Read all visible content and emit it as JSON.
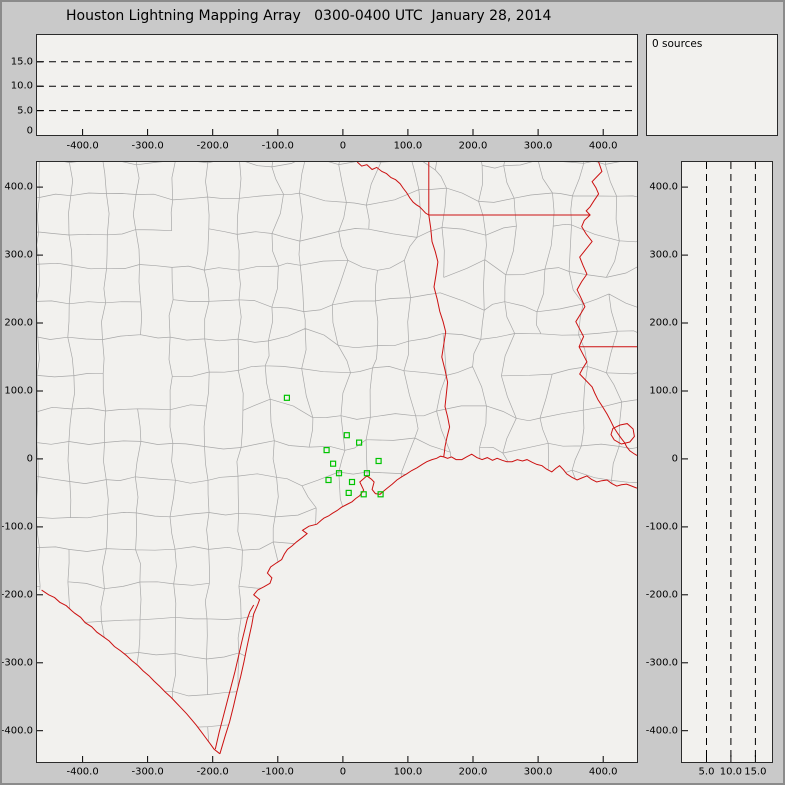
{
  "title": "Houston Lightning Mapping Array   0300-0400 UTC  January 28, 2014",
  "sources_label": "0 sources",
  "colors": {
    "window_bg": "#c9c9c9",
    "panel_bg": "#f2f1ee",
    "county_line": "#a8a8a8",
    "boundary_line": "#cc1111",
    "station_marker": "#00c400",
    "dashed_line": "#000000",
    "text": "#000000"
  },
  "axes": {
    "ew_km": {
      "ticks": [
        -400,
        -300,
        -200,
        -100,
        0,
        100,
        200,
        300,
        400
      ],
      "labels": [
        "-400.0",
        "-300.0",
        "-200.0",
        "-100.0",
        "0",
        "100.0",
        "200.0",
        "300.0",
        "400.0"
      ],
      "range": [
        -470,
        452
      ]
    },
    "ns_km": {
      "ticks": [
        400,
        300,
        200,
        100,
        0,
        -100,
        -200,
        -300,
        -400
      ],
      "labels": [
        "400.0",
        "300.0",
        "200.0",
        "100.0",
        "0",
        "-100.0",
        "-200.0",
        "-300.0",
        "-400.0"
      ],
      "range": [
        -446,
        437
      ]
    },
    "alt_km": {
      "dash_values": [
        5,
        10,
        15
      ],
      "left_ticks": [
        15,
        10,
        5,
        0
      ],
      "left_labels": [
        "15.0",
        "10.0",
        "5.0",
        "0"
      ],
      "bottom_ticks": [
        5,
        10,
        15
      ],
      "bottom_labels": [
        "5.0",
        "10.0",
        "15.0"
      ],
      "range_top_panel": [
        0,
        20.5
      ],
      "range_right_panel": [
        0,
        18.4
      ]
    }
  },
  "map": {
    "stations": [
      [
        -86,
        90
      ],
      [
        6,
        35
      ],
      [
        25,
        24
      ],
      [
        -25,
        13
      ],
      [
        -15,
        -7
      ],
      [
        -6,
        -21
      ],
      [
        -22,
        -31
      ],
      [
        14,
        -34
      ],
      [
        37,
        -21
      ],
      [
        55,
        -3
      ],
      [
        9,
        -50
      ],
      [
        32,
        -52
      ],
      [
        58,
        -52
      ]
    ],
    "coastline": [
      [
        -189,
        -434
      ],
      [
        -181,
        -408
      ],
      [
        -174,
        -387
      ],
      [
        -168,
        -364
      ],
      [
        -163,
        -343
      ],
      [
        -157,
        -320
      ],
      [
        -152,
        -299
      ],
      [
        -148,
        -280
      ],
      [
        -144,
        -262
      ],
      [
        -140,
        -244
      ],
      [
        -137,
        -228
      ],
      [
        -131,
        -215
      ],
      [
        -128,
        -207
      ],
      [
        -137,
        -200
      ],
      [
        -131,
        -193
      ],
      [
        -121,
        -188
      ],
      [
        -112,
        -183
      ],
      [
        -109,
        -175
      ],
      [
        -116,
        -168
      ],
      [
        -111,
        -159
      ],
      [
        -102,
        -153
      ],
      [
        -94,
        -148
      ],
      [
        -90,
        -140
      ],
      [
        -85,
        -133
      ],
      [
        -78,
        -128
      ],
      [
        -71,
        -122
      ],
      [
        -63,
        -116
      ],
      [
        -55,
        -110
      ],
      [
        -62,
        -105
      ],
      [
        -52,
        -99
      ],
      [
        -40,
        -96
      ],
      [
        -33,
        -90
      ],
      [
        -29,
        -87
      ],
      [
        -22,
        -84
      ],
      [
        -16,
        -80
      ],
      [
        -9,
        -76
      ],
      [
        -2,
        -71
      ],
      [
        6,
        -67
      ],
      [
        14,
        -63
      ],
      [
        20,
        -58
      ],
      [
        26,
        -54
      ],
      [
        32,
        -46
      ],
      [
        26,
        -34
      ],
      [
        37,
        -25
      ],
      [
        44,
        -30
      ],
      [
        48,
        -34
      ],
      [
        45,
        -45
      ],
      [
        50,
        -51
      ],
      [
        57,
        -52
      ],
      [
        63,
        -47
      ],
      [
        68,
        -43
      ],
      [
        76,
        -37
      ],
      [
        83,
        -31
      ],
      [
        91,
        -26
      ],
      [
        98,
        -22
      ],
      [
        106,
        -17
      ],
      [
        114,
        -13
      ],
      [
        122,
        -8
      ],
      [
        129,
        -4
      ],
      [
        137,
        -1
      ],
      [
        144,
        1
      ],
      [
        150,
        4
      ],
      [
        155,
        3
      ],
      [
        161,
        1
      ],
      [
        167,
        3
      ],
      [
        174,
        -1
      ],
      [
        183,
        -1
      ],
      [
        190,
        3
      ],
      [
        198,
        7
      ],
      [
        206,
        2
      ],
      [
        214,
        -1
      ],
      [
        222,
        2
      ],
      [
        230,
        -2
      ],
      [
        237,
        1
      ],
      [
        245,
        -2
      ],
      [
        252,
        -4
      ],
      [
        260,
        -4
      ],
      [
        268,
        -1
      ],
      [
        276,
        -3
      ],
      [
        283,
        -1
      ],
      [
        291,
        -5
      ],
      [
        298,
        -8
      ],
      [
        306,
        -10
      ],
      [
        313,
        -15
      ],
      [
        321,
        -19
      ],
      [
        327,
        -14
      ],
      [
        333,
        -10
      ],
      [
        339,
        -16
      ],
      [
        344,
        -22
      ],
      [
        352,
        -27
      ],
      [
        360,
        -31
      ],
      [
        367,
        -28
      ],
      [
        375,
        -25
      ],
      [
        382,
        -30
      ],
      [
        390,
        -34
      ],
      [
        398,
        -32
      ],
      [
        406,
        -31
      ],
      [
        413,
        -36
      ],
      [
        421,
        -40
      ],
      [
        428,
        -38
      ],
      [
        436,
        -37
      ],
      [
        444,
        -40
      ],
      [
        452,
        -43
      ]
    ],
    "rio_grande": [
      [
        -463,
        -193
      ],
      [
        -452,
        -200
      ],
      [
        -443,
        -204
      ],
      [
        -435,
        -211
      ],
      [
        -425,
        -216
      ],
      [
        -417,
        -223
      ],
      [
        -412,
        -227
      ],
      [
        -403,
        -233
      ],
      [
        -396,
        -241
      ],
      [
        -386,
        -247
      ],
      [
        -378,
        -255
      ],
      [
        -369,
        -261
      ],
      [
        -359,
        -268
      ],
      [
        -351,
        -276
      ],
      [
        -342,
        -282
      ],
      [
        -333,
        -289
      ],
      [
        -324,
        -297
      ],
      [
        -315,
        -304
      ],
      [
        -307,
        -312
      ],
      [
        -298,
        -319
      ],
      [
        -290,
        -327
      ],
      [
        -281,
        -335
      ],
      [
        -273,
        -343
      ],
      [
        -264,
        -351
      ],
      [
        -256,
        -359
      ],
      [
        -248,
        -367
      ],
      [
        -240,
        -375
      ],
      [
        -232,
        -384
      ],
      [
        -225,
        -392
      ],
      [
        -218,
        -401
      ],
      [
        -211,
        -410
      ],
      [
        -204,
        -419
      ],
      [
        -198,
        -427
      ],
      [
        -189,
        -434
      ]
    ],
    "laguna_madre_inner": [
      [
        -196,
        -427
      ],
      [
        -190,
        -402
      ],
      [
        -184,
        -380
      ],
      [
        -178,
        -358
      ],
      [
        -172,
        -336
      ],
      [
        -166,
        -314
      ],
      [
        -161,
        -293
      ],
      [
        -156,
        -272
      ],
      [
        -151,
        -252
      ],
      [
        -147,
        -236
      ],
      [
        -143,
        -225
      ],
      [
        -137,
        -215
      ]
    ],
    "borders": {
      "red_river": [
        [
          22,
          437
        ],
        [
          29,
          431
        ],
        [
          37,
          433
        ],
        [
          45,
          426
        ],
        [
          52,
          429
        ],
        [
          60,
          423
        ],
        [
          67,
          420
        ],
        [
          74,
          414
        ],
        [
          81,
          411
        ],
        [
          88,
          405
        ],
        [
          93,
          398
        ],
        [
          98,
          392
        ],
        [
          103,
          384
        ],
        [
          108,
          378
        ],
        [
          113,
          374
        ],
        [
          118,
          371
        ],
        [
          123,
          366
        ],
        [
          127,
          362
        ],
        [
          132,
          359
        ]
      ],
      "ok_ar": [
        [
          132,
          437
        ],
        [
          132,
          359
        ]
      ],
      "ar_la": [
        [
          132,
          359
        ],
        [
          380,
          359
        ]
      ],
      "la_ms": [
        [
          363,
          165
        ],
        [
          452,
          165
        ]
      ],
      "tx_la_sabine": [
        [
          132,
          359
        ],
        [
          135,
          340
        ],
        [
          137,
          320
        ],
        [
          142,
          305
        ],
        [
          146,
          290
        ],
        [
          143,
          270
        ],
        [
          140,
          253
        ],
        [
          145,
          235
        ],
        [
          149,
          217
        ],
        [
          154,
          202
        ],
        [
          158,
          187
        ],
        [
          155,
          168
        ],
        [
          152,
          150
        ],
        [
          157,
          131
        ],
        [
          161,
          113
        ],
        [
          159,
          95
        ],
        [
          157,
          77
        ],
        [
          161,
          62
        ],
        [
          164,
          47
        ],
        [
          160,
          32
        ],
        [
          157,
          18
        ],
        [
          156,
          10
        ],
        [
          155,
          3
        ]
      ],
      "mississippi_river": [
        [
          393,
          437
        ],
        [
          398,
          423
        ],
        [
          390,
          415
        ],
        [
          383,
          408
        ],
        [
          389,
          399
        ],
        [
          393,
          390
        ],
        [
          386,
          380
        ],
        [
          380,
          371
        ],
        [
          374,
          365
        ],
        [
          380,
          359
        ],
        [
          371,
          351
        ],
        [
          367,
          342
        ],
        [
          374,
          331
        ],
        [
          383,
          320
        ],
        [
          373,
          308
        ],
        [
          364,
          297
        ],
        [
          369,
          285
        ],
        [
          375,
          272
        ],
        [
          367,
          261
        ],
        [
          360,
          249
        ],
        [
          366,
          237
        ],
        [
          372,
          224
        ],
        [
          365,
          213
        ],
        [
          358,
          202
        ],
        [
          364,
          191
        ],
        [
          370,
          180
        ],
        [
          366,
          172
        ],
        [
          363,
          165
        ],
        [
          369,
          154
        ],
        [
          375,
          143
        ],
        [
          369,
          134
        ],
        [
          364,
          125
        ],
        [
          373,
          116
        ],
        [
          383,
          106
        ],
        [
          387,
          97
        ],
        [
          392,
          87
        ],
        [
          399,
          77
        ],
        [
          406,
          66
        ],
        [
          411,
          57
        ],
        [
          416,
          47
        ],
        [
          422,
          38
        ],
        [
          428,
          30
        ],
        [
          433,
          24
        ],
        [
          436,
          18
        ],
        [
          441,
          12
        ],
        [
          447,
          8
        ],
        [
          452,
          5
        ]
      ],
      "lake_pontchartrain": [
        [
          415,
          45
        ],
        [
          426,
          50
        ],
        [
          437,
          52
        ],
        [
          446,
          44
        ],
        [
          448,
          33
        ],
        [
          441,
          25
        ],
        [
          428,
          22
        ],
        [
          417,
          28
        ],
        [
          412,
          36
        ],
        [
          415,
          45
        ]
      ]
    },
    "counties": {
      "cell_km": 52,
      "jitter_km": 15,
      "seed": 20140128
    }
  }
}
